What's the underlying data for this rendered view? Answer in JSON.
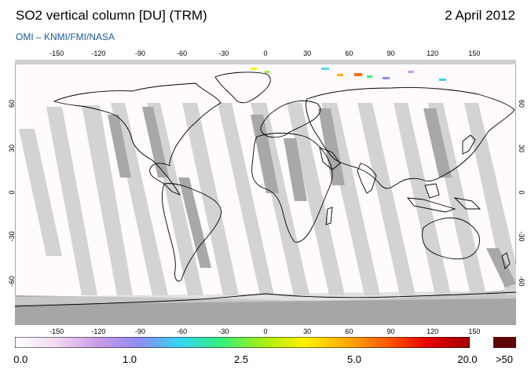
{
  "header": {
    "title": "SO2 vertical column [DU] (TRM)",
    "date": "2 April 2012",
    "subtitle": "OMI  –  KNMI/FMI/NASA"
  },
  "map": {
    "lon_ticks": [
      "-150",
      "-120",
      "-90",
      "-60",
      "-30",
      "0",
      "30",
      "60",
      "90",
      "120",
      "150"
    ],
    "lat_ticks": [
      "60",
      "30",
      "0",
      "-30",
      "-60"
    ],
    "lon_range": [
      -180,
      180
    ],
    "lat_range": [
      -90,
      90
    ],
    "colors": {
      "ocean": "#ffffff",
      "swath_light": "#d3d3d3",
      "swath_dark": "#a8a8a8",
      "polar_night": "#a6a6a6",
      "coast": "#000000"
    }
  },
  "colorbar": {
    "labels": [
      "0.0",
      "1.0",
      "2.5",
      "5.0",
      "20.0",
      ">50"
    ],
    "stops": [
      "#ffffff",
      "#f3d9f2",
      "#c99be8",
      "#8e8cf2",
      "#33d6f2",
      "#35f07a",
      "#a6ef17",
      "#fff200",
      "#ffad00",
      "#ff5a00",
      "#e60000",
      "#a00000"
    ],
    "max_color": "#5e0606"
  }
}
